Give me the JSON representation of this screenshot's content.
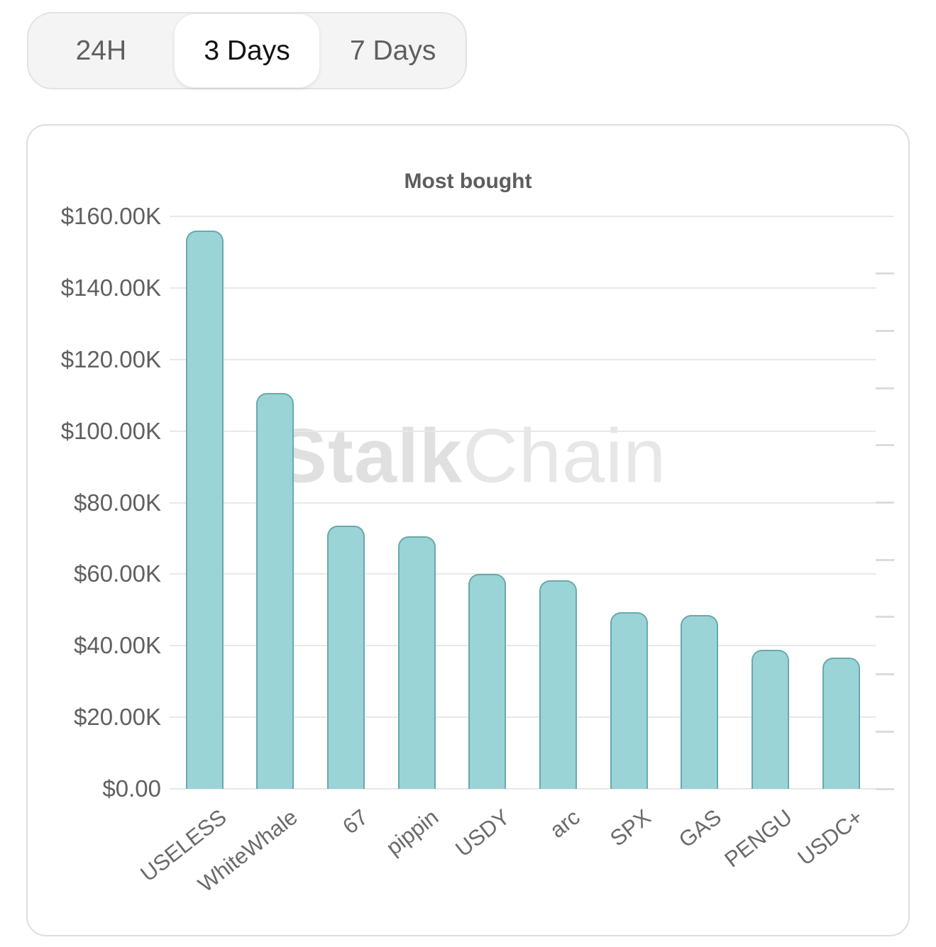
{
  "time_range_selector": {
    "options": [
      {
        "label": "24H",
        "selected": false
      },
      {
        "label": "3 Days",
        "selected": true
      },
      {
        "label": "7 Days",
        "selected": false
      }
    ]
  },
  "watermark": {
    "bold": "Stalk",
    "light": "Chain"
  },
  "chart_data": {
    "type": "bar",
    "title": "Most bought",
    "categories": [
      "USELESS",
      "WhiteWhale",
      "67",
      "pippin",
      "USDY",
      "arc",
      "SPX",
      "GAS",
      "PENGU",
      "USDC+"
    ],
    "values": [
      156000,
      110600,
      73600,
      70600,
      60100,
      58300,
      49400,
      48600,
      38900,
      36700
    ],
    "values_unit": "USD",
    "xlabel": "",
    "ylabel": "",
    "ylim": [
      0,
      160000
    ],
    "grid": true,
    "legend": false,
    "yticks": [
      {
        "value": 0,
        "label": "$0.00"
      },
      {
        "value": 20000,
        "label": "$20.00K"
      },
      {
        "value": 40000,
        "label": "$40.00K"
      },
      {
        "value": 60000,
        "label": "$60.00K"
      },
      {
        "value": 80000,
        "label": "$80.00K"
      },
      {
        "value": 100000,
        "label": "$100.00K"
      },
      {
        "value": 120000,
        "label": "$120.00K"
      },
      {
        "value": 140000,
        "label": "$140.00K"
      },
      {
        "value": 160000,
        "label": "$160.00K"
      }
    ],
    "bar_color": "#9bd4d6",
    "bar_border_color": "#69a9ad"
  }
}
